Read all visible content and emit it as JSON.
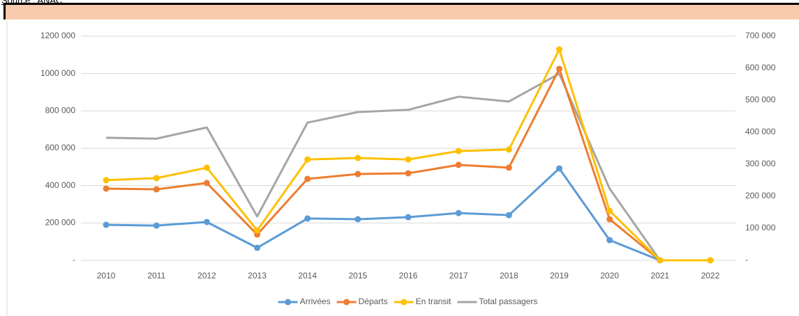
{
  "header": {
    "source_label": "Source",
    "source_value": " : ANAC"
  },
  "chart_data": {
    "type": "line",
    "categories": [
      "2010",
      "2011",
      "2012",
      "2013",
      "2014",
      "2015",
      "2016",
      "2017",
      "2018",
      "2019",
      "2020",
      "2021",
      "2022"
    ],
    "series": [
      {
        "name": "Arrivées",
        "color": "#5b9bd5",
        "marker": true,
        "values": [
          190000,
          186000,
          205000,
          67000,
          224000,
          220000,
          231000,
          253000,
          242000,
          492000,
          108000,
          0,
          0
        ]
      },
      {
        "name": "Départs",
        "color": "#ed7d31",
        "marker": true,
        "values": [
          384000,
          380000,
          414000,
          138000,
          436000,
          462000,
          466000,
          511000,
          496000,
          1025000,
          220000,
          0,
          0
        ]
      },
      {
        "name": "En transit",
        "color": "#ffc000",
        "marker": true,
        "values": [
          429000,
          440000,
          496000,
          160000,
          540000,
          548000,
          540000,
          585000,
          593000,
          1129000,
          265000,
          0,
          0
        ]
      },
      {
        "name": "Total passagers",
        "color": "#a5a5a5",
        "marker": false,
        "axis": "y2",
        "values": [
          383000,
          380000,
          415000,
          137000,
          430000,
          463000,
          470000,
          511000,
          496000,
          583000,
          224000,
          0,
          0
        ]
      }
    ],
    "ylim": [
      0,
      1200000
    ],
    "yticks": [
      {
        "value": 0,
        "label": "-"
      },
      {
        "value": 200000,
        "label": "200 000"
      },
      {
        "value": 400000,
        "label": "400 000"
      },
      {
        "value": 600000,
        "label": "600 000"
      },
      {
        "value": 800000,
        "label": "800 000"
      },
      {
        "value": 1000000,
        "label": "1000 000"
      },
      {
        "value": 1200000,
        "label": "1200 000"
      }
    ],
    "y2lim": [
      0,
      700000
    ],
    "y2ticks": [
      {
        "value": 0,
        "label": "-"
      },
      {
        "value": 100000,
        "label": "100 000"
      },
      {
        "value": 200000,
        "label": "200 000"
      },
      {
        "value": 300000,
        "label": "300 000"
      },
      {
        "value": 400000,
        "label": "400 000"
      },
      {
        "value": 500000,
        "label": "500 000"
      },
      {
        "value": 600000,
        "label": "600 000"
      },
      {
        "value": 700000,
        "label": "700 000"
      }
    ],
    "grid": true,
    "legend": "bottom"
  }
}
